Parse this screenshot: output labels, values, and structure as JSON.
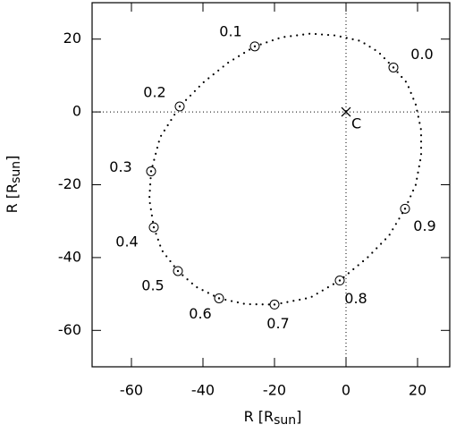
{
  "chart_data": {
    "type": "scatter",
    "xlabel": [
      "R [R",
      "sun",
      "]"
    ],
    "ylabel": [
      "R [R",
      "sun",
      "]"
    ],
    "xlim": [
      -71,
      29
    ],
    "ylim": [
      -70,
      30
    ],
    "xticks": [
      -60,
      -40,
      -20,
      0,
      20
    ],
    "yticks": [
      -60,
      -40,
      -20,
      0,
      20
    ],
    "color": "#000000",
    "hlines": [
      0
    ],
    "vlines": [
      0
    ],
    "center": {
      "label": "C",
      "x": 0,
      "y": 0
    },
    "points": {
      "labels": [
        "0.0",
        "0.1",
        "0.2",
        "0.3",
        "0.4",
        "0.5",
        "0.6",
        "0.7",
        "0.8",
        "0.9"
      ],
      "x": [
        13.25,
        -25.5,
        -46.5,
        -54.5,
        -53.75,
        -47,
        -35.5,
        -20,
        -1.75,
        16.5
      ],
      "y": [
        12.2,
        18,
        1.5,
        -16.3,
        -31.7,
        -43.7,
        -51.2,
        -52.9,
        -46.3,
        -26.6
      ]
    },
    "orbit": {
      "x": [
        13.25,
        17,
        19.5,
        21,
        21,
        19.5,
        16.5,
        12,
        6,
        -1.75,
        -10,
        -20,
        -28,
        -35.5,
        -42,
        -47,
        -51.5,
        -53.75,
        -55,
        -54.5,
        -52,
        -46.5,
        -40,
        -33,
        -25.5,
        -18,
        -10,
        -3,
        4,
        9,
        13.25
      ],
      "y": [
        12.2,
        8,
        2,
        -5,
        -12,
        -20,
        -26.6,
        -34,
        -40,
        -46.3,
        -51,
        -52.9,
        -52.8,
        -51.2,
        -48,
        -43.7,
        -38,
        -31.7,
        -24,
        -16.3,
        -7,
        1.5,
        8,
        13.5,
        18,
        20.5,
        21.5,
        21,
        19.5,
        16.5,
        12.2
      ]
    }
  }
}
